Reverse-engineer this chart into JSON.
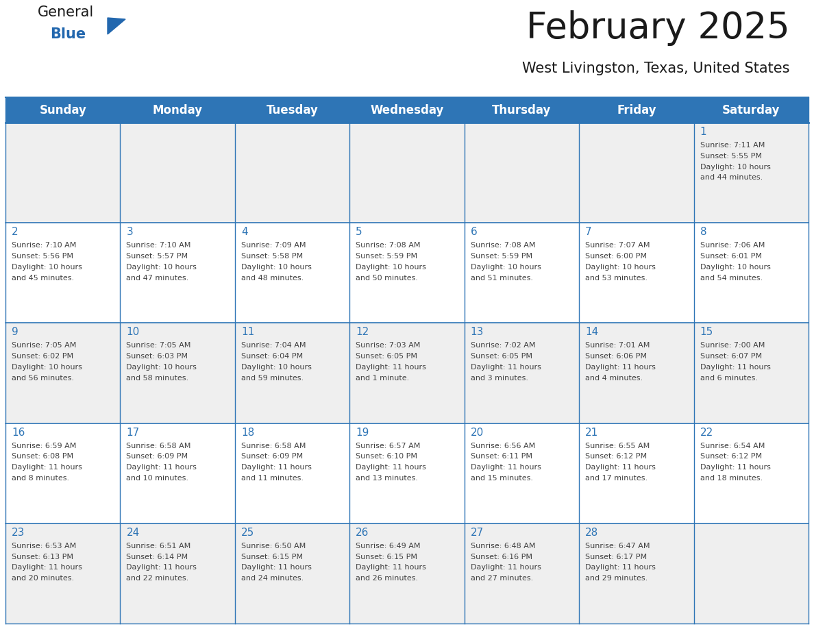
{
  "title": "February 2025",
  "subtitle": "West Livingston, Texas, United States",
  "header_bg": "#2E75B6",
  "header_text_color": "#FFFFFF",
  "cell_bg_gray": "#EFEFEF",
  "cell_bg_white": "#FFFFFF",
  "day_number_color": "#2E75B6",
  "cell_text_color": "#404040",
  "grid_line_color": "#2E75B6",
  "title_color": "#1a1a1a",
  "days_of_week": [
    "Sunday",
    "Monday",
    "Tuesday",
    "Wednesday",
    "Thursday",
    "Friday",
    "Saturday"
  ],
  "calendar_data": [
    [
      null,
      null,
      null,
      null,
      null,
      null,
      1
    ],
    [
      2,
      3,
      4,
      5,
      6,
      7,
      8
    ],
    [
      9,
      10,
      11,
      12,
      13,
      14,
      15
    ],
    [
      16,
      17,
      18,
      19,
      20,
      21,
      22
    ],
    [
      23,
      24,
      25,
      26,
      27,
      28,
      null
    ]
  ],
  "sunrise_data": {
    "1": "7:11 AM",
    "2": "7:10 AM",
    "3": "7:10 AM",
    "4": "7:09 AM",
    "5": "7:08 AM",
    "6": "7:08 AM",
    "7": "7:07 AM",
    "8": "7:06 AM",
    "9": "7:05 AM",
    "10": "7:05 AM",
    "11": "7:04 AM",
    "12": "7:03 AM",
    "13": "7:02 AM",
    "14": "7:01 AM",
    "15": "7:00 AM",
    "16": "6:59 AM",
    "17": "6:58 AM",
    "18": "6:58 AM",
    "19": "6:57 AM",
    "20": "6:56 AM",
    "21": "6:55 AM",
    "22": "6:54 AM",
    "23": "6:53 AM",
    "24": "6:51 AM",
    "25": "6:50 AM",
    "26": "6:49 AM",
    "27": "6:48 AM",
    "28": "6:47 AM"
  },
  "sunset_data": {
    "1": "5:55 PM",
    "2": "5:56 PM",
    "3": "5:57 PM",
    "4": "5:58 PM",
    "5": "5:59 PM",
    "6": "5:59 PM",
    "7": "6:00 PM",
    "8": "6:01 PM",
    "9": "6:02 PM",
    "10": "6:03 PM",
    "11": "6:04 PM",
    "12": "6:05 PM",
    "13": "6:05 PM",
    "14": "6:06 PM",
    "15": "6:07 PM",
    "16": "6:08 PM",
    "17": "6:09 PM",
    "18": "6:09 PM",
    "19": "6:10 PM",
    "20": "6:11 PM",
    "21": "6:12 PM",
    "22": "6:12 PM",
    "23": "6:13 PM",
    "24": "6:14 PM",
    "25": "6:15 PM",
    "26": "6:15 PM",
    "27": "6:16 PM",
    "28": "6:17 PM"
  },
  "daylight_data": {
    "1": "10 hours and 44 minutes.",
    "2": "10 hours and 45 minutes.",
    "3": "10 hours and 47 minutes.",
    "4": "10 hours and 48 minutes.",
    "5": "10 hours and 50 minutes.",
    "6": "10 hours and 51 minutes.",
    "7": "10 hours and 53 minutes.",
    "8": "10 hours and 54 minutes.",
    "9": "10 hours and 56 minutes.",
    "10": "10 hours and 58 minutes.",
    "11": "10 hours and 59 minutes.",
    "12": "11 hours and 1 minute.",
    "13": "11 hours and 3 minutes.",
    "14": "11 hours and 4 minutes.",
    "15": "11 hours and 6 minutes.",
    "16": "11 hours and 8 minutes.",
    "17": "11 hours and 10 minutes.",
    "18": "11 hours and 11 minutes.",
    "19": "11 hours and 13 minutes.",
    "20": "11 hours and 15 minutes.",
    "21": "11 hours and 17 minutes.",
    "22": "11 hours and 18 minutes.",
    "23": "11 hours and 20 minutes.",
    "24": "11 hours and 22 minutes.",
    "25": "11 hours and 24 minutes.",
    "26": "11 hours and 26 minutes.",
    "27": "11 hours and 27 minutes.",
    "28": "11 hours and 29 minutes."
  }
}
